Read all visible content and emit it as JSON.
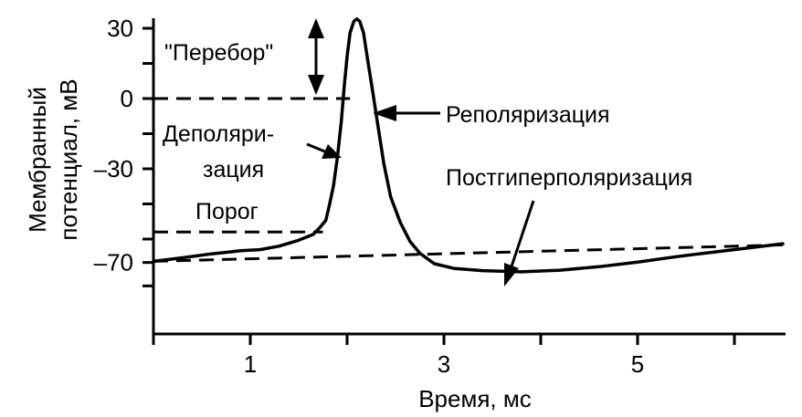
{
  "chart_data": {
    "type": "line",
    "title": "",
    "xlabel": "Время, мс",
    "ylabel_line1": "Мембранный",
    "ylabel_line2": "потенциал, мВ",
    "xlim": [
      0,
      6.5
    ],
    "ylim": [
      -80,
      35
    ],
    "x_ticks": [
      0,
      1,
      2,
      3,
      4,
      5,
      6
    ],
    "x_tick_labels": [
      {
        "value": 1,
        "label": "1"
      },
      {
        "value": 3,
        "label": "3"
      },
      {
        "value": 5,
        "label": "5"
      }
    ],
    "y_ticks": [
      30,
      15,
      0,
      -15,
      -30,
      -45,
      -60,
      -70,
      -80
    ],
    "y_tick_labels": [
      {
        "value": 30,
        "label": "30"
      },
      {
        "value": 0,
        "label": "0"
      },
      {
        "value": -30,
        "label": "–30"
      },
      {
        "value": -70,
        "label": "–70"
      }
    ],
    "series": [
      {
        "points": [
          [
            0,
            -69.5
          ],
          [
            0.3,
            -68
          ],
          [
            0.6,
            -66.3
          ],
          [
            0.9,
            -65
          ],
          [
            1.1,
            -64.5
          ],
          [
            1.3,
            -63
          ],
          [
            1.5,
            -60.5
          ],
          [
            1.65,
            -58
          ],
          [
            1.72,
            -55
          ],
          [
            1.78,
            -52
          ],
          [
            1.82,
            -45
          ],
          [
            1.86,
            -37
          ],
          [
            1.9,
            -25
          ],
          [
            1.94,
            -10
          ],
          [
            1.97,
            5
          ],
          [
            2.0,
            18
          ],
          [
            2.03,
            28
          ],
          [
            2.07,
            33
          ],
          [
            2.1,
            34
          ],
          [
            2.13,
            33
          ],
          [
            2.17,
            28
          ],
          [
            2.21,
            17
          ],
          [
            2.26,
            4
          ],
          [
            2.32,
            -12
          ],
          [
            2.38,
            -28
          ],
          [
            2.45,
            -42
          ],
          [
            2.55,
            -53
          ],
          [
            2.65,
            -61
          ],
          [
            2.75,
            -66
          ],
          [
            2.9,
            -70.5
          ],
          [
            3.1,
            -72.5
          ],
          [
            3.4,
            -73.5
          ],
          [
            3.8,
            -74
          ],
          [
            4.2,
            -73.3
          ],
          [
            4.6,
            -71.8
          ],
          [
            5.0,
            -69.8
          ],
          [
            5.4,
            -67.5
          ],
          [
            5.8,
            -65.5
          ],
          [
            6.2,
            -63.5
          ],
          [
            6.5,
            -62
          ]
        ]
      }
    ],
    "reference_lines": [
      {
        "name": "zero-line",
        "y": 0,
        "x1": 0,
        "x2": 2.03
      },
      {
        "name": "threshold-line",
        "y": -57,
        "x1": 0,
        "x2": 1.75
      },
      {
        "name": "resting-line",
        "points": [
          [
            0,
            -69.5
          ],
          [
            6.5,
            -62.5
          ]
        ]
      }
    ],
    "annotations": [
      {
        "name": "overshoot-label",
        "text": "\"Перебор\""
      },
      {
        "name": "depolarization-label-1",
        "text": "Деполяри-"
      },
      {
        "name": "depolarization-label-2",
        "text": "зация"
      },
      {
        "name": "threshold-label",
        "text": "Порог"
      },
      {
        "name": "repolarization-label",
        "text": "Реполяризация"
      },
      {
        "name": "afterhyperpolarization-label",
        "text": "Постгиперполяризация"
      }
    ]
  }
}
